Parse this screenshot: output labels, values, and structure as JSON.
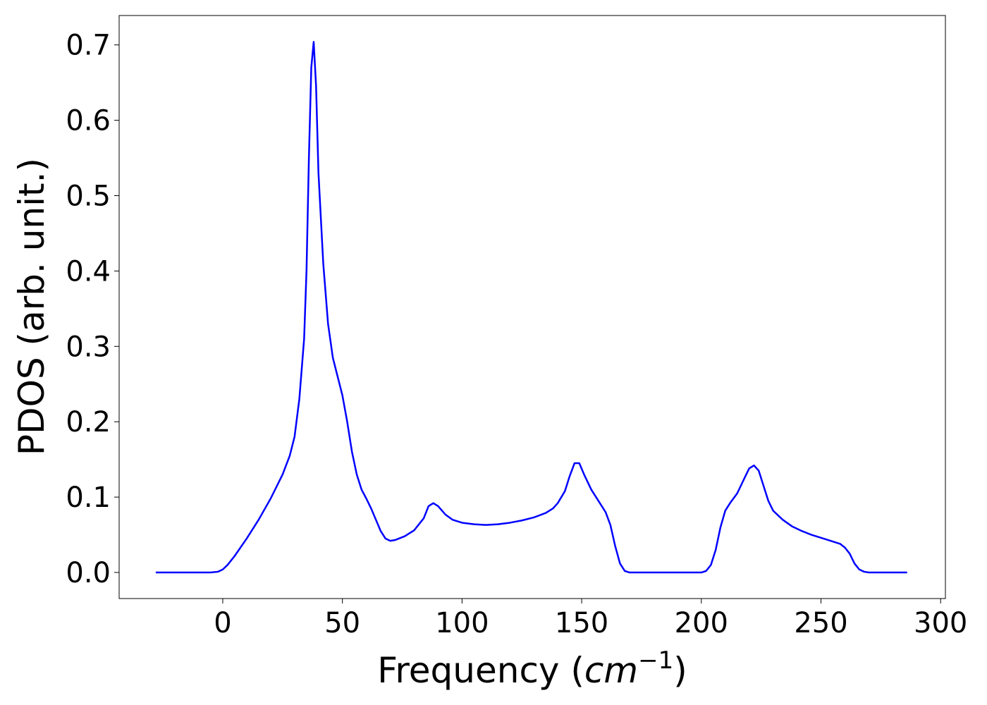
{
  "chart_data": {
    "type": "line",
    "xlabel": [
      "Frequency (",
      "cm",
      "−1",
      ")"
    ],
    "ylabel": "PDOS (arb. unit.)",
    "xlim": [
      -43.3,
      302.0
    ],
    "ylim": [
      -0.0346,
      0.739
    ],
    "xticks": [
      0,
      50,
      100,
      150,
      200,
      250,
      300
    ],
    "yticks": [
      {
        "value": 0,
        "label": "0.0"
      },
      0.1,
      0.2,
      0.3,
      0.4,
      0.5,
      0.6,
      0.7
    ],
    "x": [
      -28,
      -5,
      -2,
      0,
      2,
      5,
      10,
      15,
      20,
      25,
      28,
      30,
      32,
      34,
      35,
      36,
      37,
      38,
      39,
      40,
      42,
      44,
      46,
      48,
      50,
      52,
      54,
      56,
      58,
      60,
      62,
      64,
      66,
      68,
      70,
      72,
      76,
      80,
      84,
      86,
      88,
      90,
      93,
      96,
      100,
      105,
      110,
      115,
      120,
      125,
      130,
      135,
      138,
      140,
      143,
      145,
      147,
      149,
      151,
      154,
      157,
      160,
      162,
      164,
      166,
      168,
      170,
      200,
      202,
      204,
      206,
      208,
      210,
      212,
      215,
      218,
      220,
      222,
      224,
      226,
      228,
      230,
      234,
      238,
      242,
      246,
      250,
      254,
      258,
      260,
      262,
      264,
      266,
      268,
      270,
      286
    ],
    "series": [
      {
        "color": "#0000ff",
        "values": [
          0,
          0,
          0.001,
          0.004,
          0.01,
          0.022,
          0.045,
          0.07,
          0.098,
          0.13,
          0.155,
          0.18,
          0.23,
          0.31,
          0.4,
          0.55,
          0.67,
          0.704,
          0.645,
          0.53,
          0.41,
          0.33,
          0.285,
          0.26,
          0.235,
          0.2,
          0.16,
          0.13,
          0.11,
          0.098,
          0.085,
          0.07,
          0.055,
          0.045,
          0.042,
          0.043,
          0.048,
          0.056,
          0.072,
          0.088,
          0.092,
          0.088,
          0.077,
          0.07,
          0.066,
          0.064,
          0.063,
          0.064,
          0.066,
          0.069,
          0.073,
          0.079,
          0.085,
          0.092,
          0.108,
          0.128,
          0.145,
          0.145,
          0.13,
          0.11,
          0.095,
          0.08,
          0.063,
          0.035,
          0.012,
          0.002,
          0,
          0,
          0.002,
          0.01,
          0.03,
          0.06,
          0.082,
          0.092,
          0.105,
          0.125,
          0.138,
          0.142,
          0.135,
          0.115,
          0.095,
          0.082,
          0.07,
          0.061,
          0.055,
          0.05,
          0.046,
          0.042,
          0.038,
          0.033,
          0.025,
          0.012,
          0.004,
          0.001,
          0,
          0
        ]
      }
    ]
  }
}
